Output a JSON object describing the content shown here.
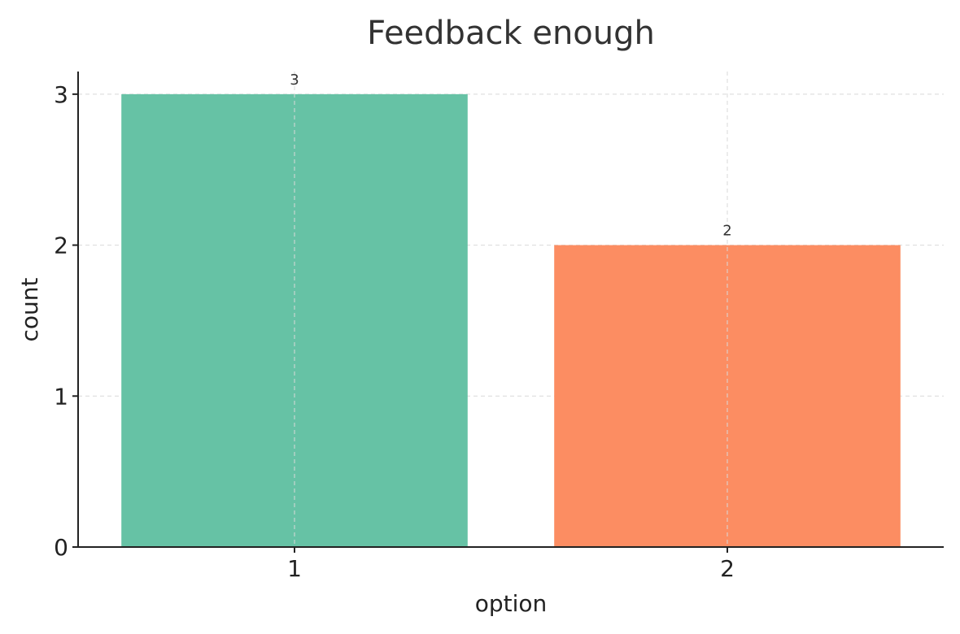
{
  "chart_data": {
    "type": "bar",
    "title": "Feedback enough",
    "xlabel": "option",
    "ylabel": "count",
    "categories": [
      "1",
      "2"
    ],
    "values": [
      3,
      2
    ],
    "data_labels": [
      "3",
      "2"
    ],
    "ylim": [
      0,
      3.15
    ],
    "yticks": [
      0,
      1,
      2,
      3
    ],
    "colors": [
      "#66c2a5",
      "#fc8d62"
    ],
    "grid": true
  }
}
